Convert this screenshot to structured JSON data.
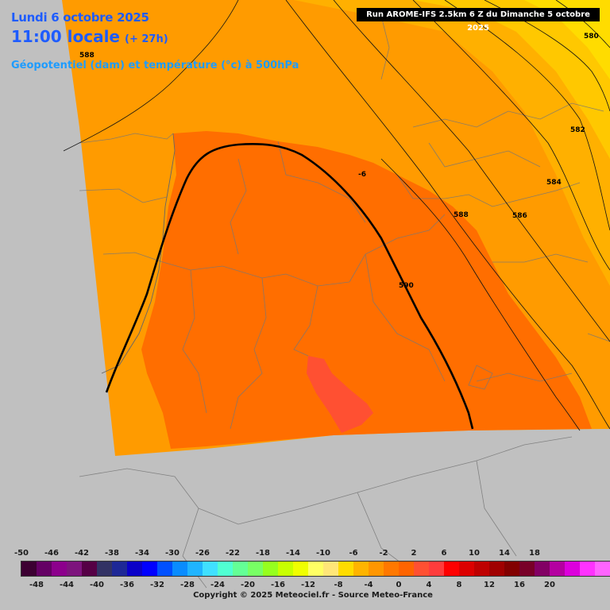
{
  "header": {
    "date": "Lundi 6 octobre 2025",
    "time": "11:00 locale",
    "lead": "(+ 27h)",
    "parameter": "Géopotentiel (dam) et température (°c) à 500hPa",
    "run": "Run AROME-IFS 2.5km 6 Z du Dimanche 5 octobre 2025"
  },
  "contours": {
    "labels": [
      "580",
      "582",
      "584",
      "586",
      "588",
      "590",
      "588"
    ],
    "temp_label": "-6"
  },
  "colorbar": {
    "top_labels": [
      "-50",
      "-46",
      "-42",
      "-38",
      "-34",
      "-30",
      "-26",
      "-22",
      "-18",
      "-14",
      "-10",
      "-6",
      "-2",
      "2",
      "6",
      "10",
      "14",
      "18"
    ],
    "bottom_labels": [
      "-48",
      "-44",
      "-40",
      "-36",
      "-32",
      "-28",
      "-24",
      "-20",
      "-16",
      "-12",
      "-8",
      "-4",
      "0",
      "4",
      "8",
      "12",
      "16",
      "20"
    ],
    "colors": [
      "#3c0032",
      "#640064",
      "#8c008c",
      "#7d147d",
      "#550045",
      "#323264",
      "#1e2896",
      "#0a00c8",
      "#0000ff",
      "#0050ff",
      "#0a8cff",
      "#20b4ff",
      "#40e0ff",
      "#50ffd2",
      "#64ff96",
      "#78ff64",
      "#96ff1e",
      "#c8ff00",
      "#f0ff00",
      "#ffff64",
      "#ffe678",
      "#ffdc00",
      "#ffb400",
      "#ff9600",
      "#ff7800",
      "#ff6400",
      "#ff5032",
      "#ff3c3c",
      "#ff0000",
      "#dc0000",
      "#be0000",
      "#a00000",
      "#820000",
      "#780028",
      "#820064",
      "#b400a0",
      "#dc00dc",
      "#ff32ff",
      "#ff64ff",
      "#ff96ff"
    ]
  },
  "copyright": "Copyright © 2025 Meteociel.fr - Source Meteo-France"
}
